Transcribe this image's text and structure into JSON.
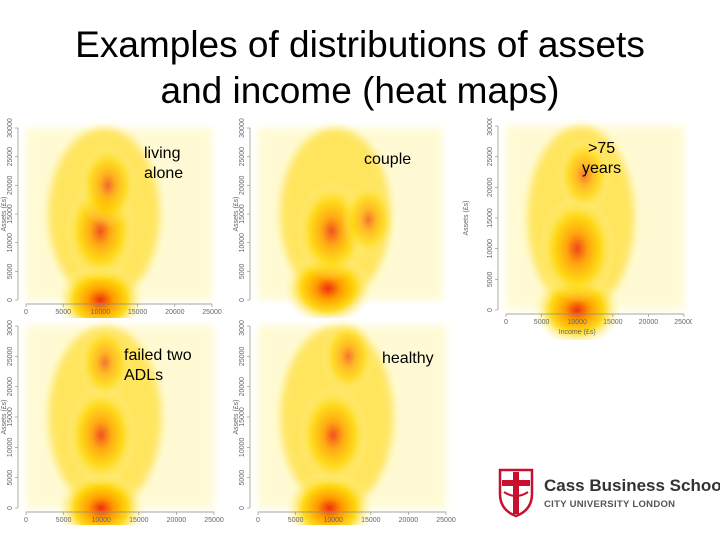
{
  "slide": {
    "title_line1": "Examples of distributions of assets",
    "title_line2": "and income (heat maps)"
  },
  "panel_labels": {
    "living_alone": "living\nalone",
    "couple": "couple",
    "over_75": ">75\nyears",
    "failed_adls": "failed two\nADLs",
    "healthy": "healthy"
  },
  "axes": {
    "x_axis_label": "Income (£s)",
    "y_axis_label": "Assets (£s)",
    "x_ticks": [
      "0",
      "5000",
      "10000",
      "15000",
      "20000",
      "25000"
    ],
    "y_ticks": [
      "0",
      "5000",
      "10000",
      "15000",
      "20000",
      "25000",
      "30000"
    ]
  },
  "logo": {
    "name": "Cass Business School",
    "subtitle": "CITY UNIVERSITY LONDON"
  },
  "colors": {
    "low": "#fff7b0",
    "mid": "#ffd400",
    "high": "#ff9a00",
    "peak": "#ee3010",
    "logo_red": "#c8102e"
  },
  "chart_data": [
    {
      "type": "heatmap",
      "title": "living alone",
      "hotspots": [
        {
          "income": 10000,
          "assets": 0,
          "density": 1.0
        },
        {
          "income": 10000,
          "assets": 12000,
          "density": 0.7
        },
        {
          "income": 11000,
          "assets": 20000,
          "density": 0.5
        }
      ]
    },
    {
      "type": "heatmap",
      "title": "couple",
      "hotspots": [
        {
          "income": 9500,
          "assets": 2000,
          "density": 1.0
        },
        {
          "income": 10000,
          "assets": 12000,
          "density": 0.7
        },
        {
          "income": 15000,
          "assets": 14000,
          "density": 0.4
        }
      ]
    },
    {
      "type": "heatmap",
      "title": ">75 years",
      "hotspots": [
        {
          "income": 10000,
          "assets": 0,
          "density": 1.0
        },
        {
          "income": 10000,
          "assets": 10000,
          "density": 0.8
        },
        {
          "income": 11000,
          "assets": 22000,
          "density": 0.4
        }
      ]
    },
    {
      "type": "heatmap",
      "title": "failed two ADLs",
      "hotspots": [
        {
          "income": 10000,
          "assets": 0,
          "density": 1.0
        },
        {
          "income": 10000,
          "assets": 12000,
          "density": 0.7
        },
        {
          "income": 10500,
          "assets": 24000,
          "density": 0.4
        }
      ]
    },
    {
      "type": "heatmap",
      "title": "healthy",
      "hotspots": [
        {
          "income": 9500,
          "assets": 0,
          "density": 1.0
        },
        {
          "income": 10000,
          "assets": 12000,
          "density": 0.7
        },
        {
          "income": 12000,
          "assets": 25000,
          "density": 0.4
        }
      ]
    }
  ]
}
